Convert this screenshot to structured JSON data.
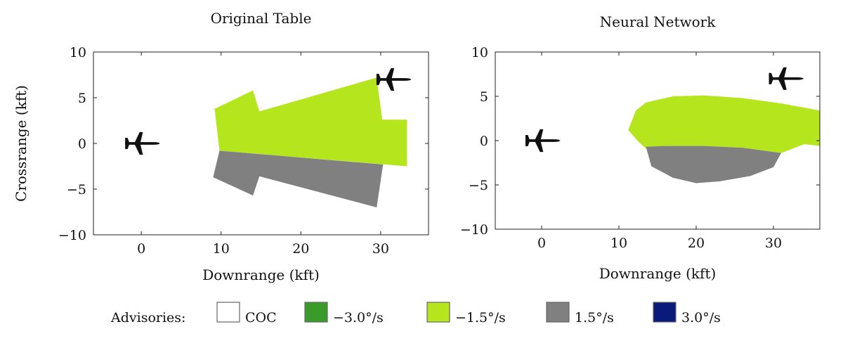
{
  "figure": {
    "shared_ylabel": "Crossrange (kft)"
  },
  "legend": {
    "title": "Advisories:",
    "items": [
      {
        "label": "COC",
        "color": "#ffffff"
      },
      {
        "label": "−3.0°/s",
        "color": "#3a9a2a"
      },
      {
        "label": "−1.5°/s",
        "color": "#b5e61d"
      },
      {
        "label": "1.5°/s",
        "color": "#808080"
      },
      {
        "label": "3.0°/s",
        "color": "#0a1a7a"
      }
    ]
  },
  "chart_data": [
    {
      "type": "area",
      "title": "Original Table",
      "xlabel": "Downrange (kft)",
      "ylabel": "Crossrange (kft)",
      "xlim": [
        -6,
        36
      ],
      "ylim": [
        -10,
        10
      ],
      "xticks": [
        0,
        10,
        20,
        30
      ],
      "yticks": [
        -10,
        -5,
        0,
        5,
        10
      ],
      "ownship": {
        "x": 0,
        "y": 0
      },
      "intruder": {
        "x": 31.5,
        "y": 7
      },
      "regions": [
        {
          "advisory": "−1.5°/s",
          "color": "#b5e61d",
          "points": [
            [
              9,
              3.7
            ],
            [
              14,
              5.8
            ],
            [
              14.8,
              3.5
            ],
            [
              29.5,
              7.2
            ],
            [
              30.2,
              2.6
            ],
            [
              33.3,
              2.6
            ],
            [
              33.3,
              -2.5
            ],
            [
              9.8,
              -0.8
            ],
            [
              9.2,
              3.7
            ]
          ]
        },
        {
          "advisory": "1.5°/s",
          "color": "#808080",
          "points": [
            [
              9.8,
              -0.8
            ],
            [
              30.3,
              -2.3
            ],
            [
              29.5,
              -7
            ],
            [
              14.8,
              -3.6
            ],
            [
              14,
              -5.7
            ],
            [
              9,
              -3.7
            ]
          ]
        }
      ]
    },
    {
      "type": "area",
      "title": "Neural Network",
      "xlabel": "Downrange (kft)",
      "ylabel": "",
      "xlim": [
        -6,
        36
      ],
      "ylim": [
        -10,
        10
      ],
      "xticks": [
        0,
        10,
        20,
        30
      ],
      "yticks": [
        -10,
        -5,
        0,
        5,
        10
      ],
      "ownship": {
        "x": 0,
        "y": 0
      },
      "intruder": {
        "x": 31.5,
        "y": 7
      },
      "regions": [
        {
          "advisory": "−1.5°/s",
          "color": "#b5e61d",
          "points": [
            [
              11.2,
              1.2
            ],
            [
              12.2,
              3.4
            ],
            [
              13.5,
              4.3
            ],
            [
              17,
              5
            ],
            [
              21,
              5.1
            ],
            [
              26,
              4.8
            ],
            [
              31,
              4.2
            ],
            [
              36,
              3.4
            ],
            [
              36,
              -0.6
            ],
            [
              34,
              -0.4
            ],
            [
              31,
              -1.4
            ],
            [
              26,
              -0.8
            ],
            [
              21,
              -0.6
            ],
            [
              16,
              -0.6
            ],
            [
              13.5,
              -0.9
            ],
            [
              12.5,
              -0.1
            ]
          ]
        },
        {
          "advisory": "1.5°/s",
          "color": "#808080",
          "points": [
            [
              13.5,
              -0.7
            ],
            [
              16,
              -0.6
            ],
            [
              21,
              -0.6
            ],
            [
              26,
              -0.8
            ],
            [
              31,
              -1.4
            ],
            [
              30,
              -3
            ],
            [
              27,
              -4
            ],
            [
              23,
              -4.6
            ],
            [
              20,
              -4.8
            ],
            [
              17,
              -4.2
            ],
            [
              14.2,
              -2.9
            ]
          ]
        }
      ]
    }
  ]
}
